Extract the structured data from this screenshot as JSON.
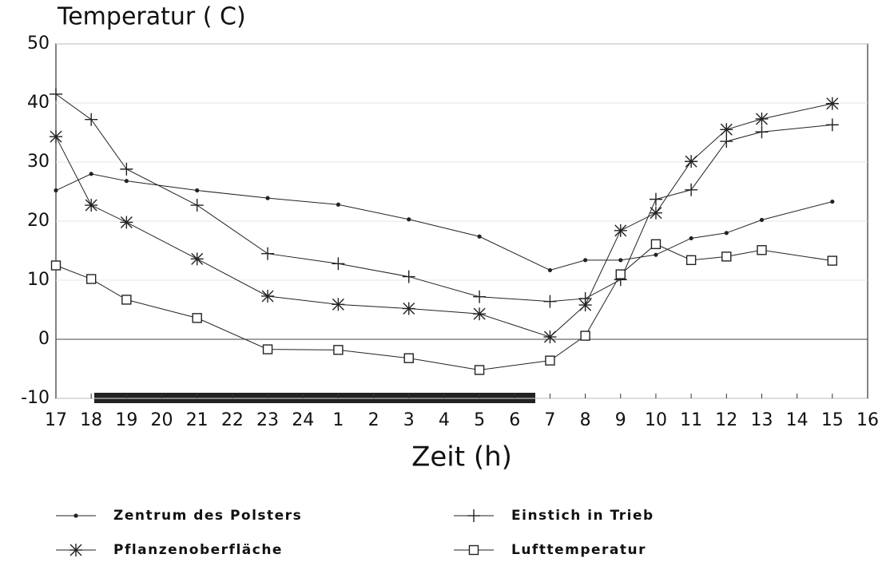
{
  "chart_data": {
    "type": "line",
    "title": "Temperatur ( C)",
    "x_label": "Zeit (h)",
    "categories": [
      "17",
      "18",
      "19",
      "20",
      "21",
      "22",
      "23",
      "24",
      "1",
      "2",
      "3",
      "4",
      "5",
      "6",
      "7",
      "8",
      "9",
      "10",
      "11",
      "12",
      "13",
      "14",
      "15",
      "16"
    ],
    "x": [
      "17",
      "18",
      "19",
      "21",
      "23",
      "1",
      "3",
      "5",
      "7",
      "8",
      "9",
      "10",
      "11",
      "12",
      "13",
      "15"
    ],
    "ylim": [
      -10,
      50
    ],
    "yticks": [
      -10,
      0,
      10,
      20,
      30,
      40,
      50
    ],
    "grid": true,
    "series": [
      {
        "name": "Zentrum des Polsters",
        "marker": "dot",
        "color": "#222",
        "values": [
          25.2,
          28,
          26.8,
          25.2,
          23.9,
          22.8,
          20.3,
          17.4,
          11.7,
          13.4,
          13.4,
          14.3,
          17.1,
          18,
          20.2,
          23.3
        ]
      },
      {
        "name": "Einstich in Trieb",
        "marker": "plus",
        "color": "#222",
        "values": [
          41.5,
          37.2,
          28.8,
          22.7,
          14.5,
          12.8,
          10.6,
          7.2,
          6.4,
          6.9,
          10.1,
          23.7,
          25.3,
          33.5,
          35.1,
          36.3
        ]
      },
      {
        "name": "Pflanzenoberfläche",
        "marker": "asterisk",
        "color": "#222",
        "values": [
          34.3,
          22.7,
          19.8,
          13.6,
          7.3,
          5.9,
          5.2,
          4.3,
          0.4,
          5.8,
          18.4,
          21.4,
          30.1,
          35.5,
          37.3,
          39.9
        ]
      },
      {
        "name": "Lufttemperatur",
        "marker": "square",
        "color": "#222",
        "values": [
          12.5,
          10.2,
          6.7,
          3.6,
          -1.7,
          -1.8,
          -3.2,
          -5.2,
          -3.6,
          0.6,
          11,
          16.1,
          13.4,
          14,
          15.1,
          13.3
        ]
      }
    ]
  }
}
